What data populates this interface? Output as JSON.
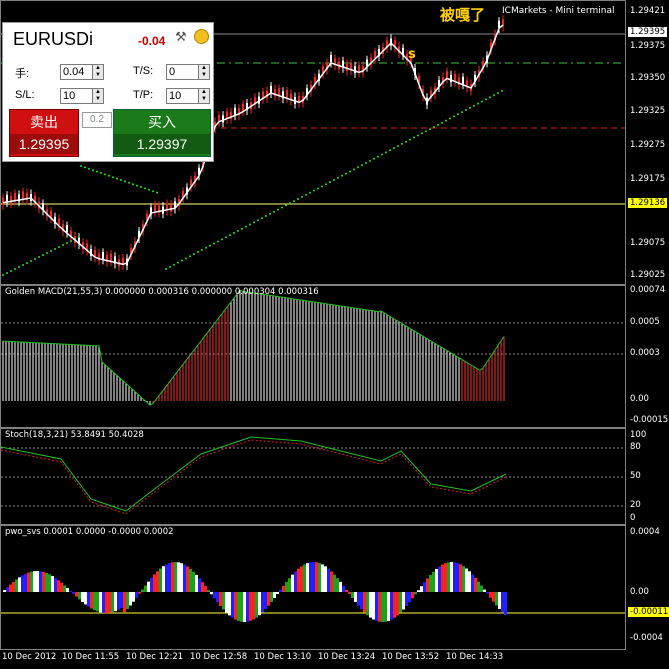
{
  "terminal": {
    "title": "ICMarkets - Mini terminal",
    "annotation": "被嘎了",
    "signal_marker": "s",
    "symbol": "EURUSDi",
    "change": "-0.04",
    "lots_label": "手:",
    "lots_value": "0.04",
    "sl_label": "S/L:",
    "sl_value": "10",
    "ts_label": "T/S:",
    "ts_value": "0",
    "tp_label": "T/P:",
    "tp_value": "10",
    "sell_label": "卖出",
    "sell_price": "1.29395",
    "buy_label": "买入",
    "buy_price": "1.29397",
    "lot_step": "0.2"
  },
  "price_axis": [
    "1.29421",
    "1.29395",
    "1.29375",
    "1.29350",
    "1.29325",
    "1.29300",
    "1.29275",
    "1.29250",
    "1.29225",
    "1.29200",
    "1.29175",
    "1.29150",
    "1.29136",
    "1.29100",
    "1.29075",
    "1.29050",
    "1.29025"
  ],
  "macd": {
    "title": "Golden MACD(21,55,3) 0.000000 0.000316 0.000000 0.000304 0.000316",
    "axis": [
      "0.00074",
      "0.0005",
      "0.0003",
      "0.00",
      "-0.00015"
    ]
  },
  "stoch": {
    "title": "Stoch(18,3,21) 53.8491 50.4028",
    "axis": [
      "100",
      "80",
      "50",
      "20",
      "0"
    ]
  },
  "pwo": {
    "title": "pwo_svs 0.0001 0.0000 -0.0000 0.0002",
    "axis": [
      "0.0004",
      "0.00",
      "-0.00011",
      "-0.0004"
    ]
  },
  "time_axis": [
    "10 Dec 2012",
    "10 Dec 11:55",
    "10 Dec 12:21",
    "10 Dec 12:58",
    "10 Dec 13:10",
    "10 Dec 13:24",
    "10 Dec 13:52",
    "10 Dec 14:33"
  ],
  "colors": {
    "bull": "#ff2020",
    "bear": "#ffffff",
    "sar": "#20e020",
    "level": "#ffff80"
  }
}
